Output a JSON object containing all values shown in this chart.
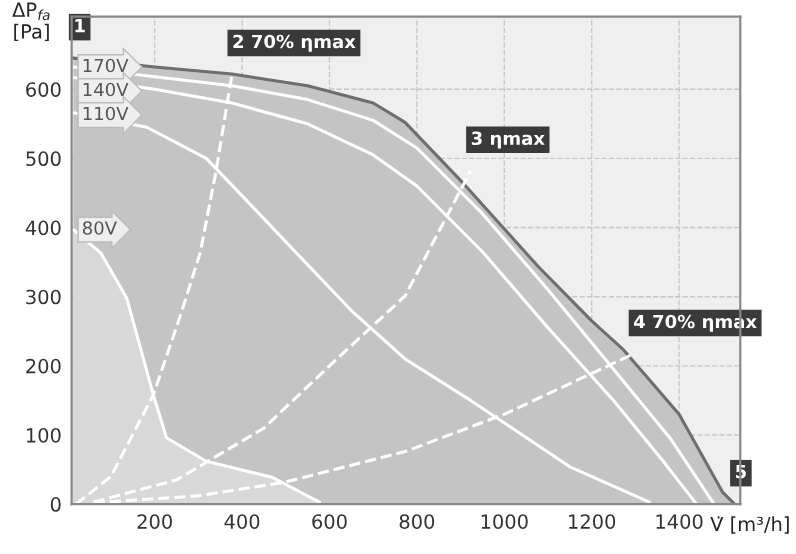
{
  "chart_data": {
    "type": "line",
    "xlabel": "V̇ [m³/h]",
    "ylabel": "ΔP$_{fa}$\n[Pa]",
    "xlim": [
      10,
      1540
    ],
    "ylim": [
      0,
      705
    ],
    "xticks": [
      200,
      400,
      600,
      800,
      1000,
      1200,
      1400
    ],
    "yticks": [
      0,
      100,
      200,
      300,
      400,
      500,
      600
    ],
    "grid": true,
    "line_style": "solid",
    "marker": "none",
    "series": [
      {
        "type": "area",
        "color": "#c4c4c4",
        "x": [
          14,
          200,
          377,
          550,
          700,
          773,
          909,
          1077,
          1200,
          1273,
          1400,
          1500,
          1527
        ],
        "values": [
          645,
          632,
          622,
          605,
          580,
          552,
          462,
          344,
          265,
          223,
          130,
          17,
          0
        ]
      },
      {
        "type": "area",
        "name": "80V",
        "color": "#d8d8d8",
        "x": [
          14,
          77,
          136,
          197,
          227,
          318,
          468,
          577
        ],
        "values": [
          397,
          363,
          298,
          158,
          96,
          62,
          39,
          3
        ]
      },
      {
        "name": "170V",
        "color": "#ffffff",
        "x": [
          14,
          200,
          377,
          550,
          700,
          800,
          950,
          1100,
          1250,
          1380,
          1480
        ],
        "values": [
          632,
          618,
          605,
          585,
          555,
          515,
          420,
          310,
          195,
          95,
          0
        ]
      },
      {
        "name": "140V",
        "color": "#ffffff",
        "x": [
          14,
          200,
          377,
          550,
          700,
          800,
          950,
          1100,
          1250,
          1360,
          1440
        ],
        "values": [
          617,
          600,
          580,
          550,
          505,
          460,
          365,
          255,
          150,
          65,
          0
        ]
      },
      {
        "name": "110V",
        "color": "#ffffff",
        "x": [
          14,
          182,
          318,
          409,
          514,
          650,
          773,
          923,
          1150,
          1332
        ],
        "values": [
          566,
          545,
          500,
          440,
          370,
          280,
          210,
          150,
          54,
          3
        ]
      },
      {
        "type": "line",
        "color": "#ffffff",
        "line_style": "dashed",
        "x": [
          20,
          100,
          197,
          260,
          304,
          340,
          377
        ],
        "values": [
          0,
          40,
          158,
          275,
          363,
          480,
          622
        ]
      },
      {
        "type": "line",
        "color": "#ffffff",
        "line_style": "dashed",
        "x": [
          60,
          250,
          450,
          600,
          773,
          923
        ],
        "values": [
          3,
          35,
          110,
          200,
          301,
          482
        ]
      },
      {
        "type": "line",
        "color": "#ffffff",
        "line_style": "dashed",
        "x": [
          60,
          300,
          500,
          773,
          1000,
          1295
        ],
        "values": [
          2,
          12,
          32,
          76,
          130,
          217
        ]
      }
    ],
    "annotations": [
      {
        "text": "1",
        "x": 14,
        "y": 645
      },
      {
        "text": "2 70% ηmax",
        "x": 377,
        "y": 622
      },
      {
        "text": "3 ηmax",
        "x": 923,
        "y": 482
      },
      {
        "text": "4 70% ηmax",
        "x": 1295,
        "y": 217
      },
      {
        "text": "5",
        "x": 1527,
        "y": 0
      }
    ]
  }
}
